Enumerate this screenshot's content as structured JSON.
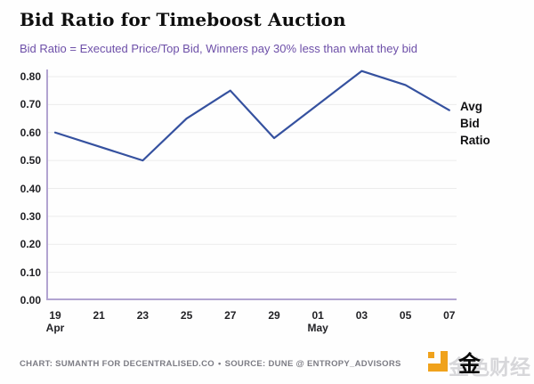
{
  "title": "Bid Ratio for Timeboost Auction",
  "subtitle": "Bid Ratio = Executed Price/Top Bid, Winners pay 30% less than what they bid",
  "annotation": {
    "lines": [
      "Avg",
      "Bid",
      "Ratio"
    ]
  },
  "footer": {
    "credit": "CHART: SUMANTH FOR DECENTRALISED.CO",
    "separator": "•",
    "source": "SOURCE: DUNE @ ENTROPY_ADVISORS"
  },
  "watermark": {
    "brand_text": "金色财经",
    "seal_char": "金"
  },
  "colors": {
    "line": "#35519f",
    "axis": "#b2a4d1",
    "grid": "#ececec",
    "subtitle": "#6d4fa8",
    "brand_orange": "#f0a21c"
  },
  "chart_data": {
    "type": "line",
    "title": "Bid Ratio for Timeboost Auction",
    "subtitle": "Bid Ratio = Executed Price/Top Bid, Winners pay 30% less than what they bid",
    "categories": [
      "19",
      "21",
      "23",
      "25",
      "27",
      "29",
      "01",
      "03",
      "05",
      "07"
    ],
    "month_labels": [
      {
        "index": 0,
        "label": "Apr"
      },
      {
        "index": 6,
        "label": "May"
      }
    ],
    "series": [
      {
        "name": "Avg Bid Ratio",
        "color": "#35519f",
        "values": [
          0.6,
          0.55,
          0.5,
          0.65,
          0.75,
          0.58,
          0.7,
          0.82,
          0.77,
          0.68
        ]
      }
    ],
    "y_tick_labels": [
      "0.80",
      "0.70",
      "0.60",
      "0.50",
      "0.40",
      "0.30",
      "0.20",
      "0.10",
      "0.00"
    ],
    "ylim": [
      0,
      0.8
    ],
    "grid": true,
    "legend_position": "right-annotation",
    "xlabel": "",
    "ylabel": ""
  }
}
